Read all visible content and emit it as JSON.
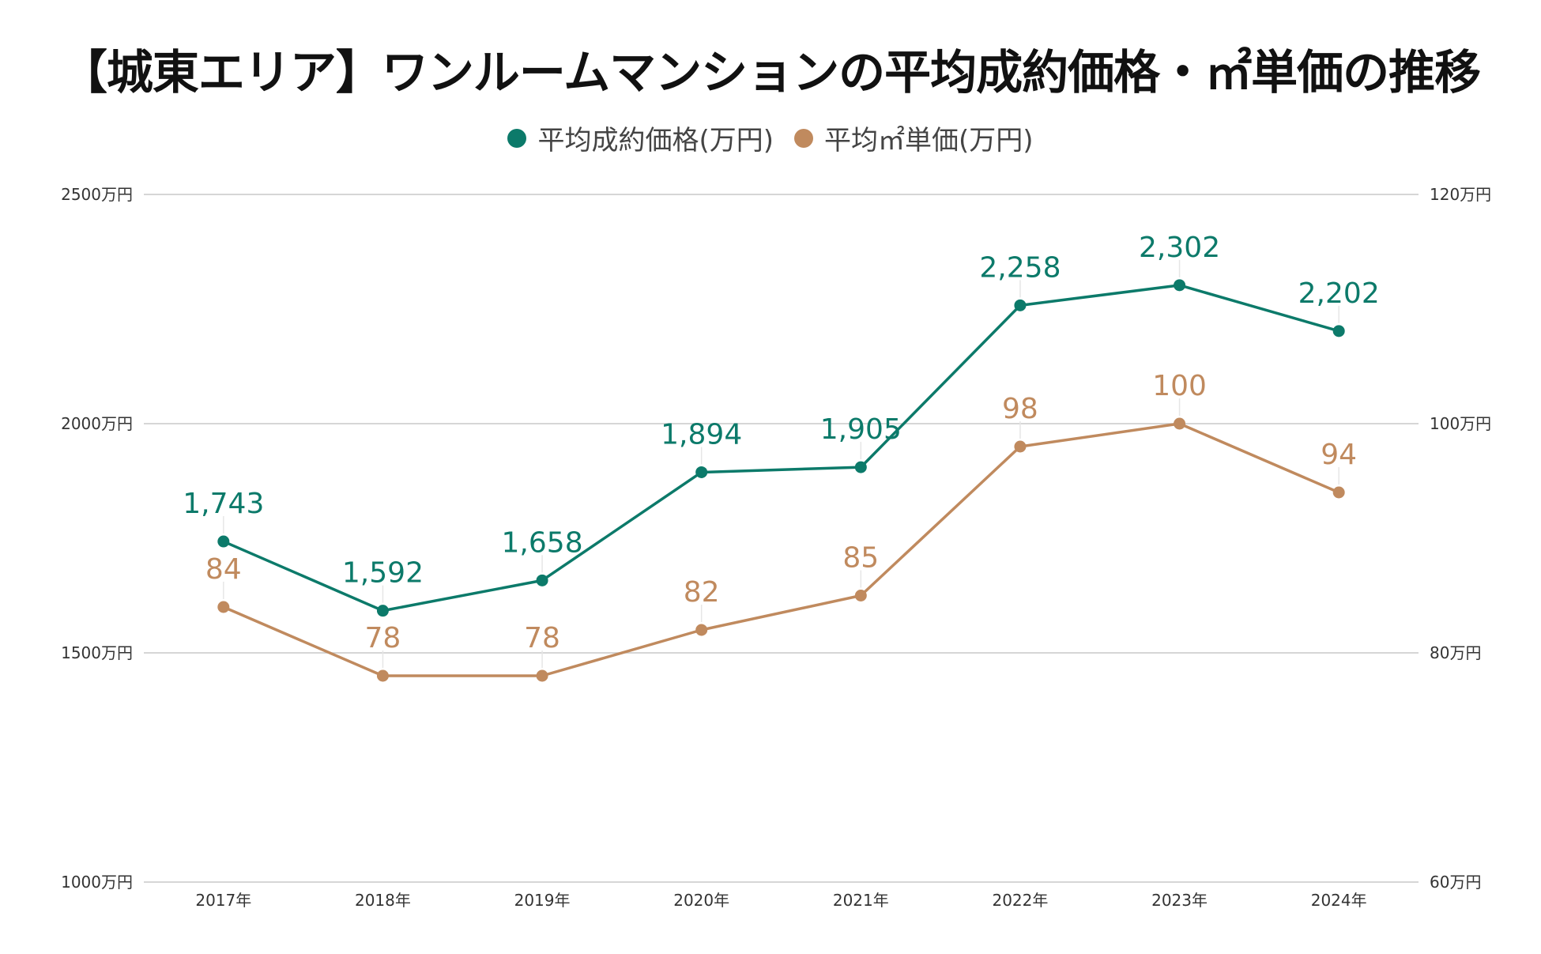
{
  "chart_data": {
    "type": "line",
    "title": "【城東エリア】ワンルームマンションの平均成約価格・㎡単価の推移",
    "categories": [
      "2017年",
      "2018年",
      "2019年",
      "2020年",
      "2021年",
      "2022年",
      "2023年",
      "2024年"
    ],
    "series": [
      {
        "name": "平均成約価格(万円)",
        "axis": "left",
        "color": "#0c7a6a",
        "values": [
          1743,
          1592,
          1658,
          1894,
          1905,
          2258,
          2302,
          2202
        ],
        "labels": [
          "1,743",
          "1,592",
          "1,658",
          "1,894",
          "1,905",
          "2,258",
          "2,302",
          "2,202"
        ]
      },
      {
        "name": "平均㎡単価(万円)",
        "axis": "right",
        "color": "#c08a5e",
        "values": [
          84,
          78,
          78,
          82,
          85,
          98,
          100,
          94
        ],
        "labels": [
          "84",
          "78",
          "78",
          "82",
          "85",
          "98",
          "100",
          "94"
        ]
      }
    ],
    "y_left": {
      "range": [
        1000,
        2500
      ],
      "ticks": [
        1000,
        1500,
        2000,
        2500
      ],
      "tick_labels": [
        "1000万円",
        "1500万円",
        "2000万円",
        "2500万円"
      ]
    },
    "y_right": {
      "range": [
        60,
        120
      ],
      "ticks": [
        60,
        80,
        100,
        120
      ],
      "tick_labels": [
        "60万円",
        "80万円",
        "100万円",
        "120万円"
      ]
    },
    "grid": true,
    "legend": "top-center"
  }
}
